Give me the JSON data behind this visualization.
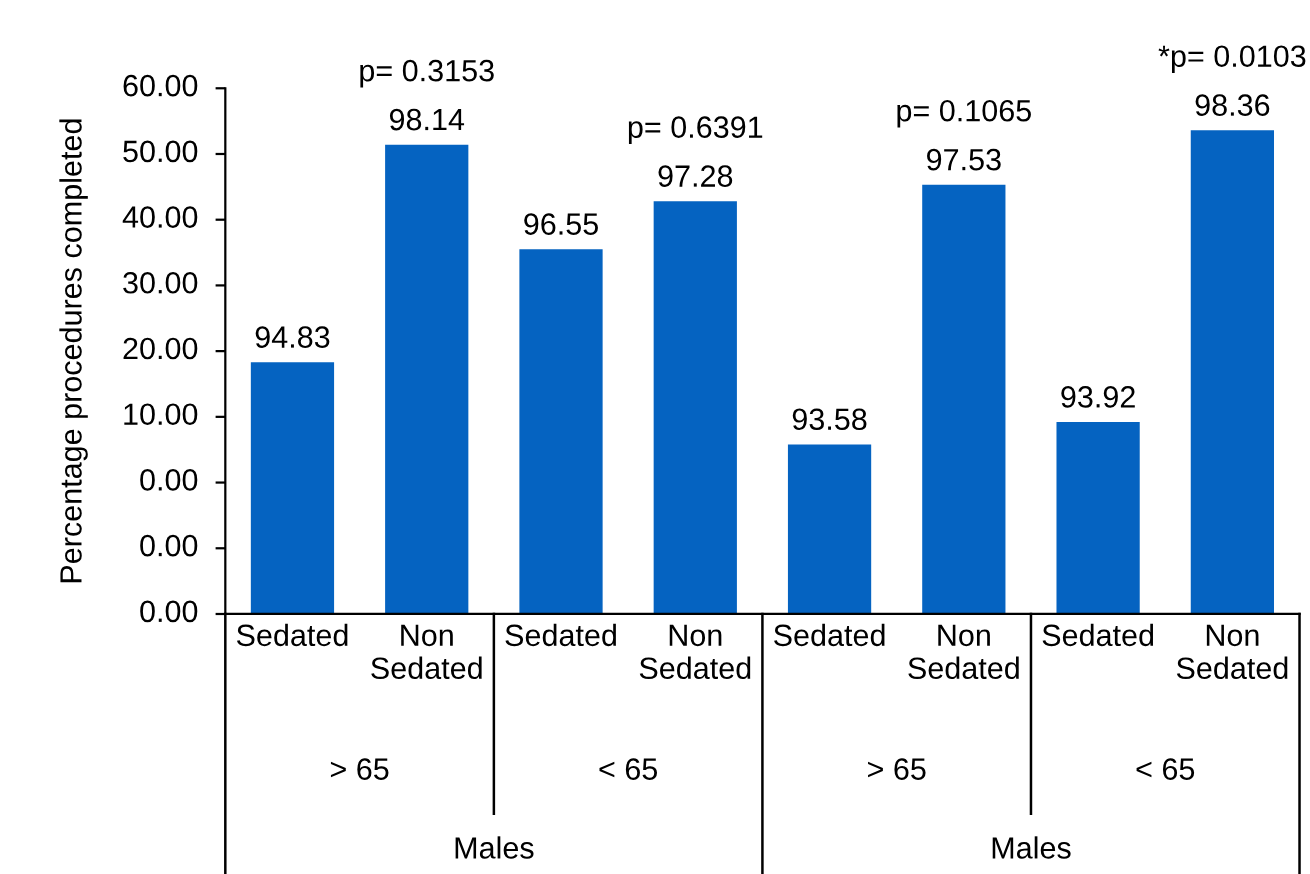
{
  "chart_data": {
    "type": "bar",
    "ylabel": "Percentage procedures completed",
    "categories": [
      "Sedated",
      "Non\nSedated",
      "Sedated",
      "Non\nSedated",
      "Sedated",
      "Non\nSedated",
      "Sedated",
      "Non\nSedated"
    ],
    "values": [
      94.83,
      98.14,
      96.55,
      97.28,
      93.58,
      97.53,
      93.92,
      98.36
    ],
    "color": "#0563c1",
    "data_labels": true,
    "ylim": [
      91,
      99
    ],
    "yticks": [
      {
        "value": 91,
        "label": null
      },
      {
        "value": 92,
        "label": null
      },
      {
        "value": 93,
        "label": null
      },
      {
        "value": 94,
        "label": null
      },
      {
        "value": 95,
        "label": null
      },
      {
        "value": 96,
        "label": null
      },
      {
        "value": 97,
        "label": null
      },
      {
        "value": 98,
        "label": null
      },
      {
        "value": 99,
        "label": null
      }
    ],
    "annotations": [
      "0.00",
      "0.00",
      "0.00",
      "10.00",
      "20.00",
      "30.00",
      "40.00",
      "50.00",
      "60.00",
      "p= 0.3153",
      "p= 0.6391",
      "p= 0.1065",
      "*p= 0.0103",
      "> 65",
      "< 65",
      "> 65",
      "< 65",
      "Males",
      "Males"
    ],
    "grid": false,
    "legend": false
  }
}
